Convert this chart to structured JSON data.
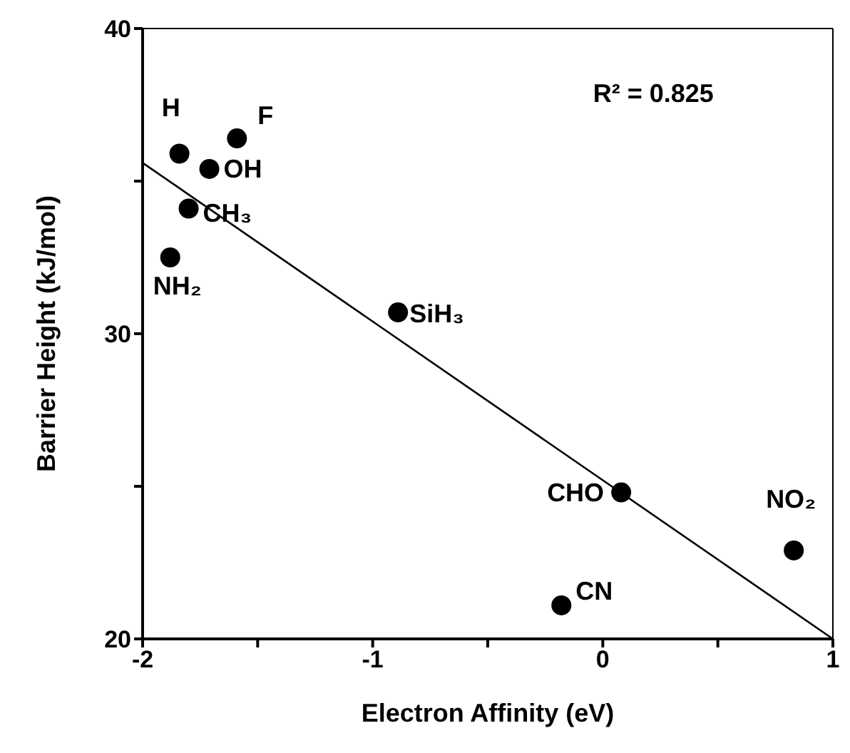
{
  "chart_data": {
    "type": "scatter",
    "xlabel": "Electron Affinity (eV)",
    "ylabel": "Barrier Height (kJ/mol)",
    "xlim": [
      -2,
      1
    ],
    "xticks": [
      -2,
      {
        "value": -1.5,
        "label": null
      },
      -1,
      {
        "value": -0.5,
        "label": null
      },
      0,
      {
        "value": 0.5,
        "label": null
      },
      1
    ],
    "ylim": [
      20,
      40
    ],
    "yticks": [
      20,
      {
        "value": 25,
        "label": null
      },
      30,
      {
        "value": 35,
        "label": null
      },
      40
    ],
    "marker": "circle",
    "series": [
      {
        "color": "#000000",
        "x": [
          -1.84,
          -1.59,
          -1.71,
          -1.8,
          -1.88,
          -0.89,
          0.08,
          0.83,
          -0.18
        ],
        "values": [
          35.9,
          36.4,
          35.4,
          34.1,
          32.5,
          30.7,
          24.8,
          22.9,
          21.1
        ]
      },
      {
        "type": "line",
        "color": "#000000",
        "line_style": "solid",
        "marker": "none",
        "x": [
          -2,
          1
        ],
        "values": [
          35.6,
          20
        ]
      }
    ],
    "annotations": [
      {
        "text": "H",
        "x": -1.84,
        "y": 35.9
      },
      {
        "text": "F",
        "x": -1.59,
        "y": 36.4
      },
      {
        "text": "OH",
        "x": -1.71,
        "y": 35.4
      },
      {
        "text": "CH₃",
        "x": -1.8,
        "y": 34.1
      },
      {
        "text": "NH₂",
        "x": -1.88,
        "y": 32.5
      },
      {
        "text": "SiH₃",
        "x": -0.89,
        "y": 30.7
      },
      {
        "text": "CHO",
        "x": 0.08,
        "y": 24.8
      },
      {
        "text": "NO₂",
        "x": 0.83,
        "y": 22.9
      },
      {
        "text": "CN",
        "x": -0.18,
        "y": 21.1
      },
      "R² = 0.825"
    ]
  }
}
